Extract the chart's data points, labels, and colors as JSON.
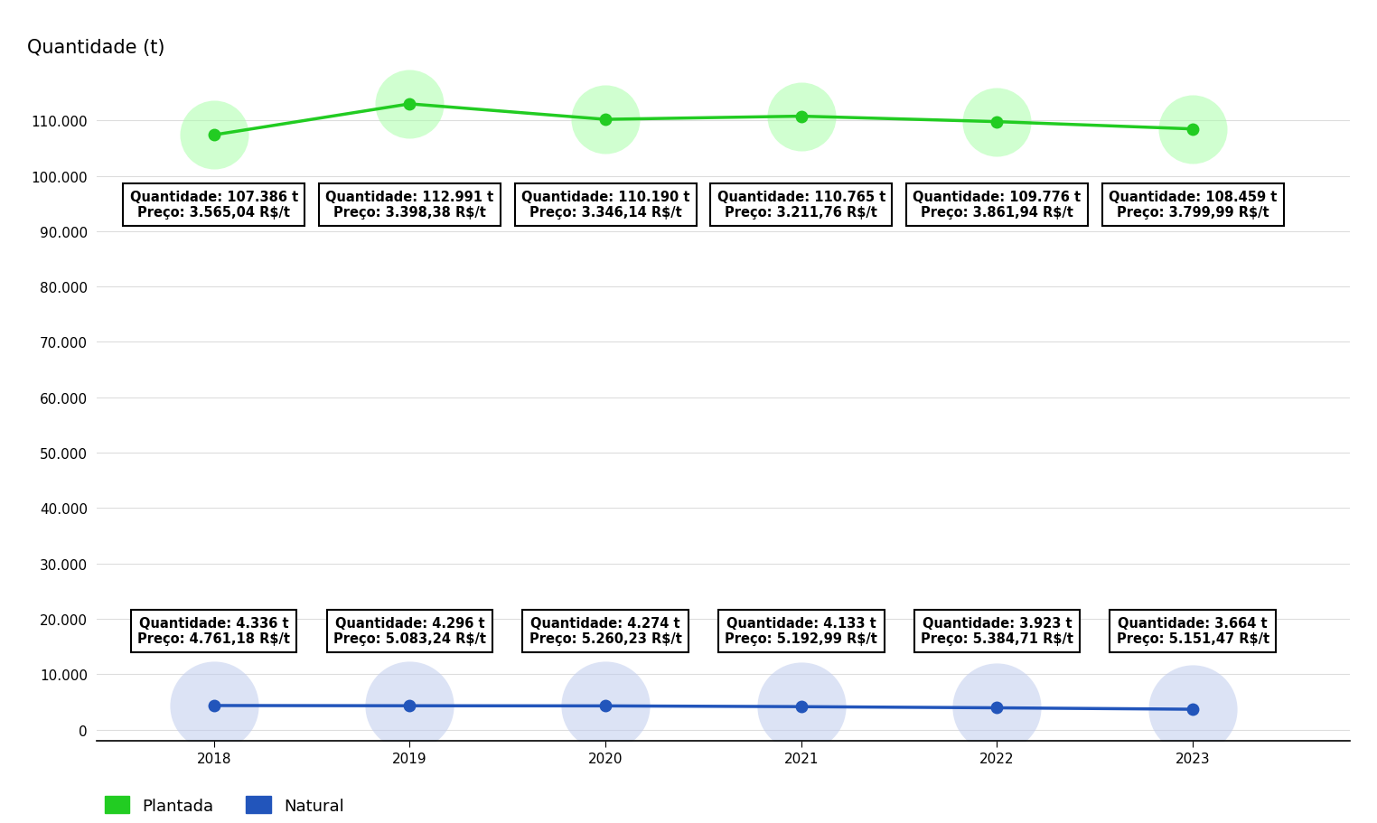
{
  "years": [
    2018,
    2019,
    2020,
    2021,
    2022,
    2023
  ],
  "plantada_qty": [
    107386,
    112991,
    110190,
    110765,
    109776,
    108459
  ],
  "plantada_price": [
    "3.565,04",
    "3.398,38",
    "3.346,14",
    "3.211,76",
    "3.861,94",
    "3.799,99"
  ],
  "natural_qty": [
    4336,
    4296,
    4274,
    4133,
    3923,
    3664
  ],
  "natural_price": [
    "4.761,18",
    "5.083,24",
    "5.260,23",
    "5.192,99",
    "5.384,71",
    "5.151,47"
  ],
  "plantada_color": "#22cc22",
  "plantada_halo_color": "#aaffaa",
  "natural_color": "#2255bb",
  "natural_halo_color": "#c0ccee",
  "ylabel": "Quantidade (t)",
  "ylim_max": 120000,
  "yticks": [
    0,
    10000,
    20000,
    30000,
    40000,
    50000,
    60000,
    70000,
    80000,
    90000,
    100000,
    110000
  ],
  "background_color": "#ffffff",
  "title_fontsize": 15,
  "label_fontsize": 10.5,
  "tick_fontsize": 11
}
